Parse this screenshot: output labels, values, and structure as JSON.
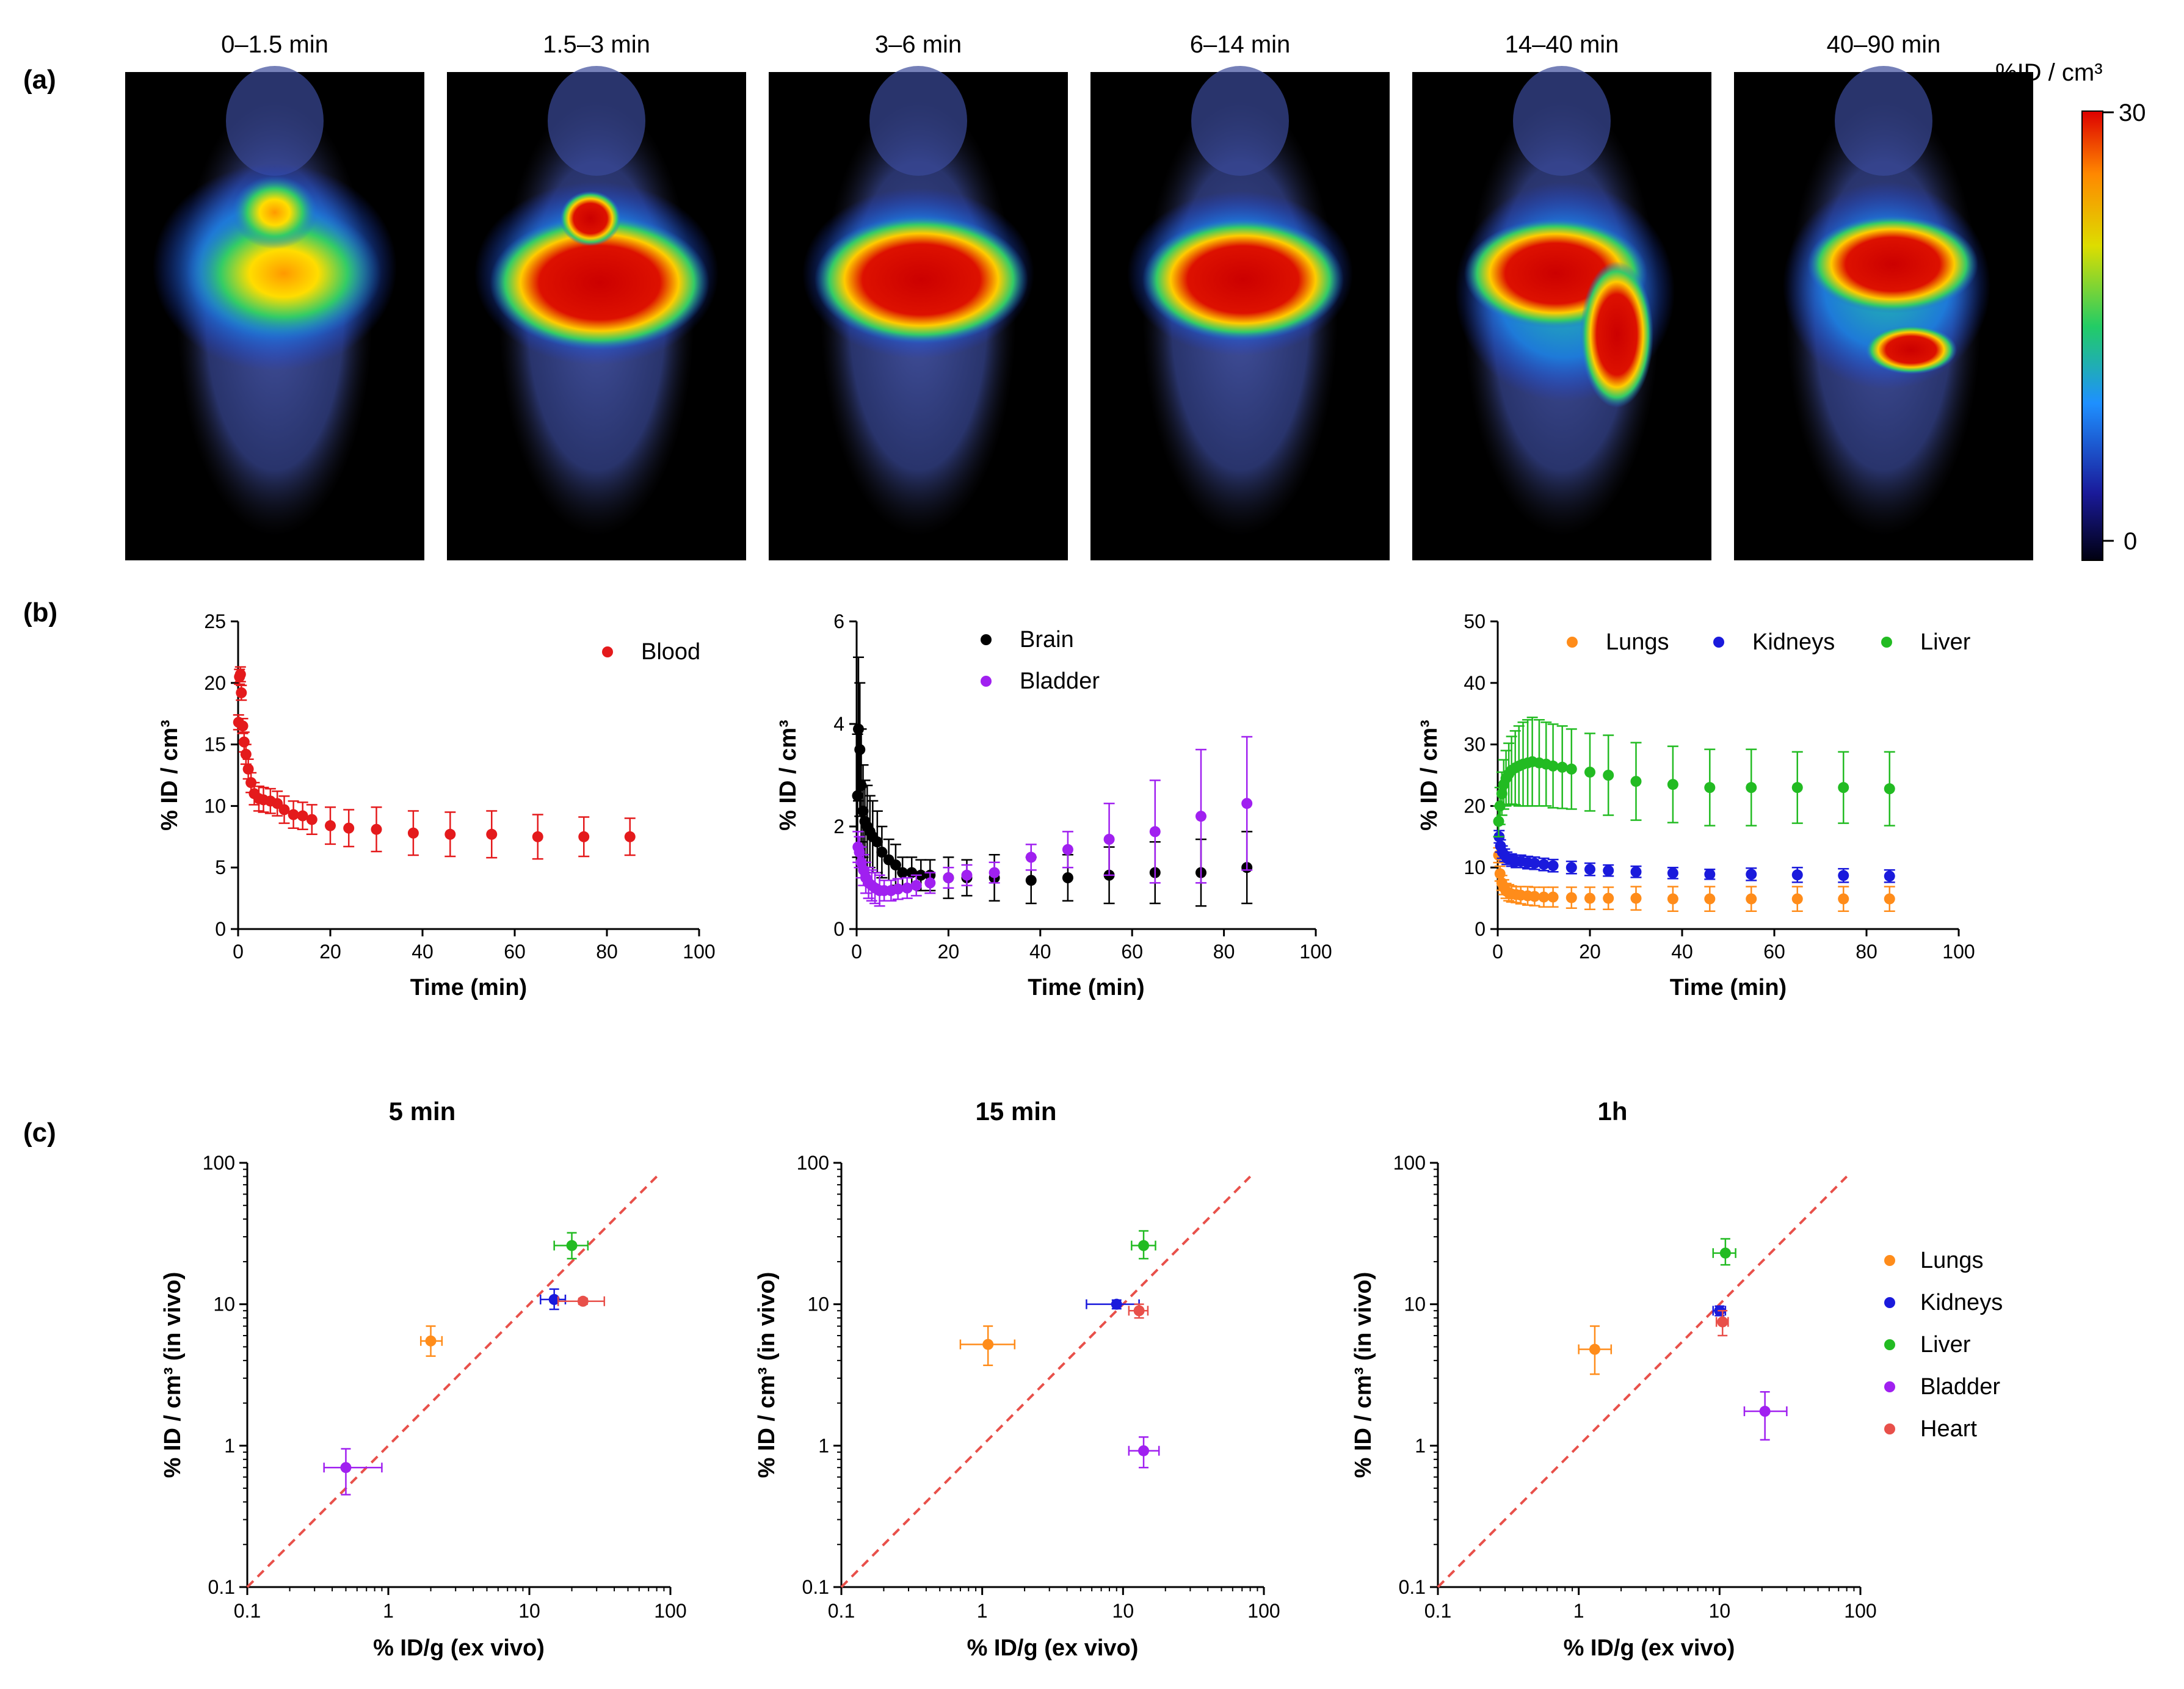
{
  "panels": {
    "a": "(a)",
    "b": "(b)",
    "c": "(c)"
  },
  "pet_frames": [
    "0–1.5 min",
    "1.5–3 min",
    "3–6 min",
    "6–14 min",
    "14–40 min",
    "40–90 min"
  ],
  "colorbar": {
    "label": "%ID / cm³",
    "max": "30",
    "min": "0"
  },
  "colors": {
    "Blood": "#e41a1c",
    "Brain": "#000000",
    "Bladder": "#a020f0",
    "Lungs": "#ff8c1a",
    "Kidneys": "#1a1adc",
    "Liver": "#22bb22",
    "Heart": "#e8504a",
    "identity_line": "#e8504a"
  },
  "chart_data": [
    {
      "id": "b1",
      "type": "scatter",
      "xlabel": "Time (min)",
      "ylabel": "% ID / cm³",
      "xlim": [
        0,
        100
      ],
      "ylim": [
        0,
        25
      ],
      "xticks": [
        0,
        20,
        40,
        60,
        80,
        100
      ],
      "yticks": [
        0,
        5,
        10,
        15,
        20,
        25
      ],
      "series": [
        {
          "name": "Blood",
          "x": [
            0.1,
            0.3,
            0.5,
            0.7,
            1.0,
            1.3,
            1.7,
            2.2,
            2.8,
            3.5,
            4.5,
            5.5,
            7,
            8.5,
            10,
            12,
            14,
            16,
            20,
            24,
            30,
            38,
            46,
            55,
            65,
            75,
            85
          ],
          "y": [
            16.8,
            20.5,
            20.7,
            19.2,
            16.5,
            15.2,
            14.2,
            13.0,
            11.9,
            11.0,
            10.6,
            10.5,
            10.4,
            10.2,
            9.7,
            9.3,
            9.2,
            8.9,
            8.4,
            8.2,
            8.1,
            7.8,
            7.7,
            7.7,
            7.5,
            7.5,
            7.5
          ],
          "err": [
            0.6,
            0.6,
            0.6,
            0.6,
            0.6,
            0.8,
            0.8,
            0.8,
            0.8,
            0.9,
            1.0,
            1.0,
            1.0,
            1.0,
            1.1,
            1.1,
            1.1,
            1.2,
            1.5,
            1.5,
            1.8,
            1.8,
            1.8,
            1.9,
            1.8,
            1.6,
            1.5
          ]
        }
      ]
    },
    {
      "id": "b2",
      "type": "scatter",
      "xlabel": "Time (min)",
      "ylabel": "% ID / cm³",
      "xlim": [
        0,
        100
      ],
      "ylim": [
        0,
        6
      ],
      "xticks": [
        0,
        20,
        40,
        60,
        80,
        100
      ],
      "yticks": [
        0,
        2,
        4,
        6
      ],
      "series": [
        {
          "name": "Brain",
          "x": [
            0.2,
            0.4,
            0.7,
            1.0,
            1.4,
            1.8,
            2.3,
            2.9,
            3.5,
            4.5,
            5.5,
            7,
            8.5,
            10,
            12,
            14,
            16,
            20,
            24,
            30,
            38,
            46,
            55,
            65,
            75,
            85
          ],
          "y": [
            2.6,
            3.9,
            3.5,
            2.8,
            2.3,
            2.1,
            2.0,
            1.9,
            1.8,
            1.7,
            1.5,
            1.35,
            1.25,
            1.1,
            1.1,
            1.05,
            1.05,
            1.0,
            1.0,
            1.0,
            0.95,
            1.0,
            1.05,
            1.1,
            1.1,
            1.2
          ],
          "err": [
            1.2,
            1.4,
            1.3,
            1.1,
            0.9,
            0.8,
            0.8,
            0.7,
            0.7,
            0.6,
            0.5,
            0.4,
            0.4,
            0.3,
            0.3,
            0.3,
            0.3,
            0.4,
            0.35,
            0.45,
            0.45,
            0.45,
            0.55,
            0.6,
            0.65,
            0.7
          ]
        },
        {
          "name": "Bladder",
          "x": [
            0.3,
            0.6,
            1.0,
            1.5,
            2.0,
            2.6,
            3.3,
            4.0,
            5.0,
            6.0,
            7.5,
            9,
            11,
            13,
            16,
            20,
            24,
            30,
            38,
            46,
            55,
            65,
            75,
            85
          ],
          "y": [
            1.6,
            1.5,
            1.3,
            1.15,
            1.0,
            0.9,
            0.85,
            0.8,
            0.75,
            0.75,
            0.75,
            0.78,
            0.8,
            0.85,
            0.9,
            1.0,
            1.05,
            1.1,
            1.4,
            1.55,
            1.75,
            1.9,
            2.2,
            2.45
          ],
          "err": [
            0.3,
            0.3,
            0.3,
            0.3,
            0.3,
            0.3,
            0.3,
            0.3,
            0.3,
            0.2,
            0.2,
            0.2,
            0.2,
            0.2,
            0.2,
            0.2,
            0.2,
            0.2,
            0.25,
            0.35,
            0.7,
            1.0,
            1.3,
            1.3
          ]
        }
      ]
    },
    {
      "id": "b3",
      "type": "scatter",
      "xlabel": "Time (min)",
      "ylabel": "% ID / cm³",
      "xlim": [
        0,
        100
      ],
      "ylim": [
        0,
        50
      ],
      "xticks": [
        0,
        20,
        40,
        60,
        80,
        100
      ],
      "yticks": [
        0,
        10,
        20,
        30,
        40,
        50
      ],
      "series": [
        {
          "name": "Lungs",
          "x": [
            0.2,
            0.5,
            0.9,
            1.3,
            1.8,
            2.4,
            3.0,
            4.0,
            5.0,
            6.5,
            8,
            10,
            12,
            16,
            20,
            24,
            30,
            38,
            46,
            55,
            65,
            75,
            85
          ],
          "y": [
            12.0,
            9.0,
            7.5,
            6.8,
            6.2,
            5.9,
            5.7,
            5.6,
            5.5,
            5.4,
            5.3,
            5.2,
            5.2,
            5.1,
            5.0,
            5.0,
            5.0,
            4.9,
            4.9,
            4.9,
            4.9,
            4.9,
            4.9
          ],
          "err": [
            1.2,
            1.2,
            1.2,
            1.2,
            1.2,
            1.3,
            1.3,
            1.3,
            1.4,
            1.5,
            1.5,
            1.6,
            1.6,
            1.7,
            1.8,
            1.8,
            1.9,
            2.0,
            2.0,
            2.0,
            2.0,
            2.0,
            2.0
          ]
        },
        {
          "name": "Kidneys",
          "x": [
            0.3,
            0.6,
            1.0,
            1.5,
            2.0,
            3.0,
            4.0,
            5.0,
            6.5,
            8,
            10,
            12,
            16,
            20,
            24,
            30,
            38,
            46,
            55,
            65,
            75,
            85
          ],
          "y": [
            15.0,
            13.5,
            12.5,
            12.0,
            11.5,
            11.2,
            11.0,
            11.0,
            10.8,
            10.7,
            10.5,
            10.3,
            10.0,
            9.7,
            9.5,
            9.3,
            9.1,
            8.9,
            8.9,
            8.8,
            8.7,
            8.6
          ],
          "err": [
            1.0,
            1.0,
            1.0,
            1.0,
            1.0,
            1.0,
            1.0,
            1.0,
            1.0,
            1.0,
            1.0,
            1.0,
            1.0,
            1.0,
            0.9,
            0.9,
            0.9,
            0.8,
            1.0,
            1.2,
            1.1,
            1.0
          ]
        },
        {
          "name": "Liver",
          "x": [
            0.2,
            0.5,
            0.9,
            1.3,
            1.8,
            2.4,
            3.0,
            3.8,
            4.6,
            5.5,
            6.5,
            7.5,
            9,
            10.5,
            12,
            14,
            16,
            20,
            24,
            30,
            38,
            46,
            55,
            65,
            75,
            85
          ],
          "y": [
            17.5,
            20.0,
            22.0,
            23.5,
            24.5,
            25.2,
            25.8,
            26.2,
            26.5,
            26.8,
            27.0,
            27.2,
            27.0,
            26.8,
            26.5,
            26.3,
            26.0,
            25.5,
            25.0,
            24.0,
            23.5,
            23.0,
            23.0,
            23.0,
            23.0,
            22.8
          ],
          "err": [
            2.5,
            3.0,
            3.5,
            4.0,
            4.5,
            5.0,
            5.5,
            6.0,
            6.5,
            6.8,
            7.0,
            7.2,
            7.0,
            6.8,
            6.8,
            6.7,
            6.5,
            6.3,
            6.5,
            6.3,
            6.2,
            6.2,
            6.2,
            5.8,
            5.8,
            6.0
          ]
        }
      ]
    },
    {
      "id": "c1",
      "type": "scatter",
      "title": "5 min",
      "xlabel": "% ID/g (ex vivo)",
      "ylabel": "% ID / cm³ (in vivo)",
      "xscale": "log",
      "yscale": "log",
      "xlim": [
        0.1,
        100
      ],
      "ylim": [
        0.1,
        100
      ],
      "xticks": [
        "0.1",
        "1",
        "10",
        "100"
      ],
      "yticks": [
        "0.1",
        "1",
        "10",
        "100"
      ],
      "identity_line": true,
      "points": [
        {
          "name": "Lungs",
          "x": 2.0,
          "y": 5.5,
          "xerr": [
            1.7,
            2.4
          ],
          "yerr": [
            4.3,
            7.0
          ]
        },
        {
          "name": "Kidneys",
          "x": 15,
          "y": 10.8,
          "xerr": [
            12,
            18
          ],
          "yerr": [
            9.2,
            12.8
          ]
        },
        {
          "name": "Liver",
          "x": 20,
          "y": 26,
          "xerr": [
            15,
            26
          ],
          "yerr": [
            21,
            32
          ]
        },
        {
          "name": "Bladder",
          "x": 0.5,
          "y": 0.7,
          "xerr": [
            0.35,
            0.9
          ],
          "yerr": [
            0.45,
            0.95
          ]
        },
        {
          "name": "Heart",
          "x": 24,
          "y": 10.5,
          "xerr": [
            16,
            34
          ],
          "yerr": [
            10,
            11
          ]
        }
      ]
    },
    {
      "id": "c2",
      "type": "scatter",
      "title": "15 min",
      "xlabel": "% ID/g (ex vivo)",
      "ylabel": "% ID / cm³ (in vivo)",
      "xscale": "log",
      "yscale": "log",
      "xlim": [
        0.1,
        100
      ],
      "ylim": [
        0.1,
        100
      ],
      "xticks": [
        "0.1",
        "1",
        "10",
        "100"
      ],
      "yticks": [
        "0.1",
        "1",
        "10",
        "100"
      ],
      "identity_line": true,
      "points": [
        {
          "name": "Lungs",
          "x": 1.1,
          "y": 5.2,
          "xerr": [
            0.7,
            1.7
          ],
          "yerr": [
            3.7,
            7.0
          ]
        },
        {
          "name": "Kidneys",
          "x": 9,
          "y": 10,
          "xerr": [
            5.5,
            13
          ],
          "yerr": [
            9.3,
            10.7
          ]
        },
        {
          "name": "Liver",
          "x": 14,
          "y": 26,
          "xerr": [
            11.5,
            17
          ],
          "yerr": [
            21,
            33
          ]
        },
        {
          "name": "Bladder",
          "x": 14,
          "y": 0.92,
          "xerr": [
            11,
            18
          ],
          "yerr": [
            0.7,
            1.15
          ]
        },
        {
          "name": "Heart",
          "x": 13,
          "y": 9,
          "xerr": [
            11,
            15
          ],
          "yerr": [
            8,
            10
          ]
        }
      ]
    },
    {
      "id": "c3",
      "type": "scatter",
      "title": "1h",
      "xlabel": "% ID/g (ex vivo)",
      "ylabel": "% ID / cm³ (in vivo)",
      "xscale": "log",
      "yscale": "log",
      "xlim": [
        0.1,
        100
      ],
      "ylim": [
        0.1,
        100
      ],
      "xticks": [
        "0.1",
        "1",
        "10",
        "100"
      ],
      "yticks": [
        "0.1",
        "1",
        "10",
        "100"
      ],
      "identity_line": true,
      "legend": [
        "Lungs",
        "Kidneys",
        "Liver",
        "Bladder",
        "Heart"
      ],
      "points": [
        {
          "name": "Lungs",
          "x": 1.3,
          "y": 4.8,
          "xerr": [
            1.0,
            1.7
          ],
          "yerr": [
            3.2,
            7.0
          ]
        },
        {
          "name": "Kidneys",
          "x": 10,
          "y": 9,
          "xerr": [
            9,
            11
          ],
          "yerr": [
            8.3,
            9.7
          ]
        },
        {
          "name": "Liver",
          "x": 11,
          "y": 23,
          "xerr": [
            9,
            13
          ],
          "yerr": [
            19,
            29
          ]
        },
        {
          "name": "Bladder",
          "x": 21,
          "y": 1.75,
          "xerr": [
            15,
            30
          ],
          "yerr": [
            1.1,
            2.4
          ]
        },
        {
          "name": "Heart",
          "x": 10.5,
          "y": 7.5,
          "xerr": [
            9.5,
            11.5
          ],
          "yerr": [
            6,
            9
          ]
        }
      ]
    }
  ]
}
